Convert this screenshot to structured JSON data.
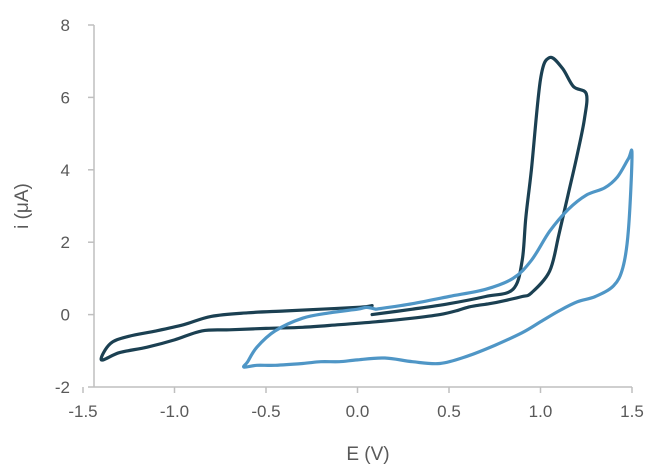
{
  "chart_data": {
    "type": "line",
    "title": "",
    "xlabel": "E (V)",
    "ylabel": "i (μA)",
    "xlim": [
      -1.5,
      1.5
    ],
    "ylim": [
      -2,
      8
    ],
    "x_ticks": [
      -1.5,
      -1.0,
      -0.5,
      0.0,
      0.5,
      1.0,
      1.5
    ],
    "x_tick_labels": [
      "-1.5",
      "-1.0",
      "-0.5",
      "0.0",
      "0.5",
      "1.0",
      "1.5"
    ],
    "y_ticks": [
      -2,
      0,
      2,
      4,
      6,
      8
    ],
    "y_tick_labels": [
      "-2",
      "0",
      "2",
      "4",
      "6",
      "8"
    ],
    "grid": false,
    "legend": false,
    "series": [
      {
        "color": "#1b4052",
        "x": [
          0.08,
          0.3,
          0.5,
          0.7,
          0.85,
          0.9,
          0.92,
          0.95,
          1.0,
          1.05,
          1.12,
          1.18,
          1.25,
          1.24,
          1.2,
          1.15,
          1.1,
          1.05,
          0.95,
          0.9,
          0.8,
          0.72,
          0.65,
          0.6,
          0.55,
          0.45,
          0.3,
          0.1,
          -0.1,
          -0.3,
          -0.5,
          -0.7,
          -0.85,
          -1.0,
          -1.15,
          -1.3,
          -1.4,
          -1.35,
          -1.25,
          -1.1,
          -0.95,
          -0.8,
          -0.6,
          -0.4,
          -0.2,
          0.0,
          0.05,
          0.08
        ],
        "y": [
          0.0,
          0.15,
          0.3,
          0.5,
          0.7,
          1.5,
          2.7,
          4.0,
          6.5,
          7.1,
          6.8,
          6.3,
          6.1,
          5.4,
          4.4,
          3.3,
          2.2,
          1.2,
          0.6,
          0.5,
          0.38,
          0.3,
          0.25,
          0.2,
          0.12,
          0.0,
          -0.1,
          -0.2,
          -0.28,
          -0.35,
          -0.38,
          -0.42,
          -0.45,
          -0.7,
          -0.9,
          -1.05,
          -1.25,
          -0.8,
          -0.6,
          -0.45,
          -0.28,
          -0.05,
          0.05,
          0.1,
          0.15,
          0.2,
          0.22,
          0.25
        ]
      },
      {
        "color": "#4f96c6",
        "x": [
          0.1,
          0.3,
          0.5,
          0.7,
          0.85,
          0.95,
          1.05,
          1.15,
          1.25,
          1.35,
          1.42,
          1.48,
          1.5,
          1.48,
          1.45,
          1.4,
          1.3,
          1.2,
          1.1,
          1.0,
          0.9,
          0.75,
          0.6,
          0.45,
          0.3,
          0.15,
          0.0,
          -0.1,
          -0.2,
          -0.3,
          -0.45,
          -0.55,
          -0.62,
          -0.6,
          -0.55,
          -0.45,
          -0.3,
          -0.15,
          0.0,
          0.05,
          0.1
        ],
        "y": [
          0.15,
          0.3,
          0.5,
          0.7,
          1.0,
          1.5,
          2.3,
          2.9,
          3.3,
          3.5,
          3.8,
          4.3,
          4.4,
          2.3,
          1.3,
          0.8,
          0.5,
          0.35,
          0.1,
          -0.2,
          -0.5,
          -0.85,
          -1.15,
          -1.35,
          -1.3,
          -1.2,
          -1.25,
          -1.3,
          -1.3,
          -1.35,
          -1.4,
          -1.4,
          -1.45,
          -1.3,
          -0.9,
          -0.45,
          -0.1,
          0.05,
          0.15,
          0.2,
          0.15
        ]
      }
    ]
  }
}
